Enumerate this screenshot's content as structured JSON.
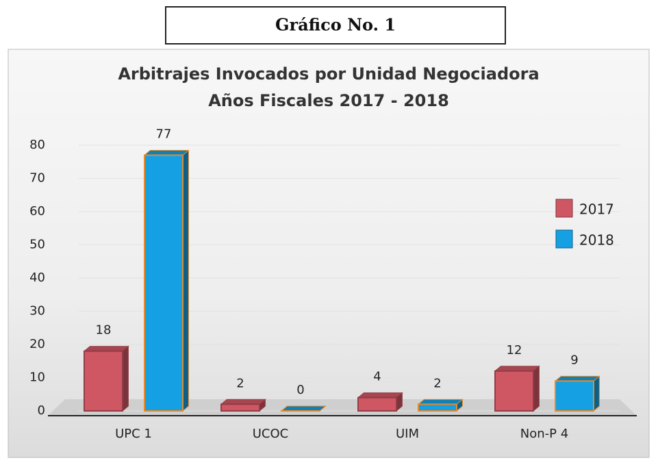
{
  "heading": "Gráfico No. 1",
  "chart_data": {
    "type": "bar",
    "title": [
      "Arbitrajes Invocados por Unidad Negociadora",
      "Años Fiscales 2017 - 2018"
    ],
    "categories": [
      "UPC 1",
      "UCOC",
      "UIM",
      "Non-P 4"
    ],
    "series": [
      {
        "name": "2017",
        "color": "#cf5764",
        "values": [
          18,
          2,
          4,
          12
        ]
      },
      {
        "name": "2018",
        "color": "#14a0e2",
        "values": [
          77,
          0,
          2,
          9
        ]
      }
    ],
    "ylim": [
      0,
      80
    ],
    "yticks": [
      0,
      10,
      20,
      30,
      40,
      50,
      60,
      70,
      80
    ],
    "grid": true,
    "legend": "right"
  }
}
